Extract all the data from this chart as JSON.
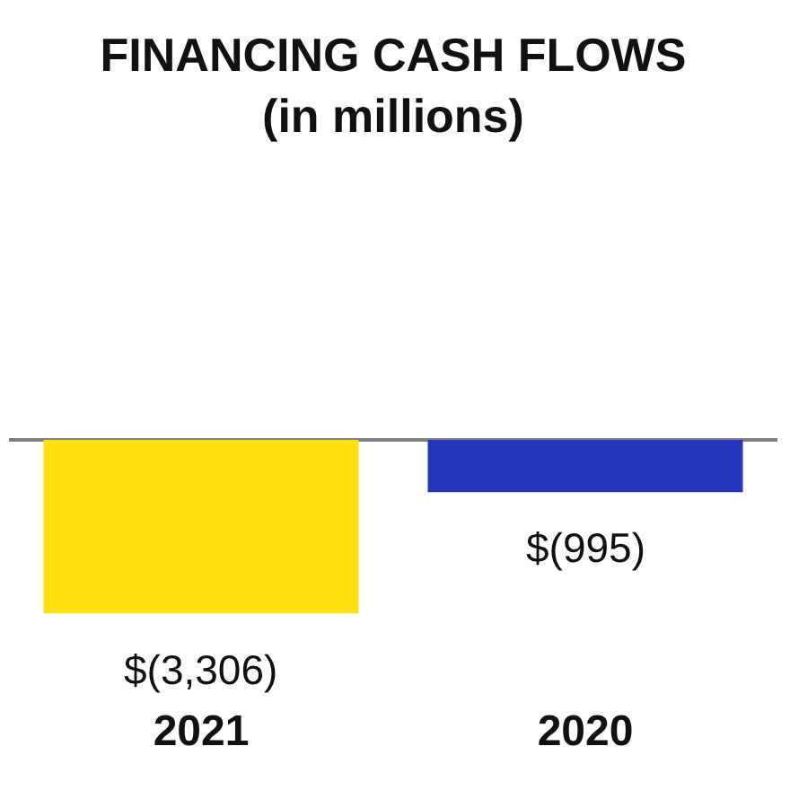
{
  "chart_data": {
    "type": "bar",
    "title": "FINANCING CASH FLOWS\n(in millions)",
    "categories": [
      "2021",
      "2020"
    ],
    "values": [
      -3306,
      -995
    ],
    "colors": [
      "#ffdf10",
      "#2535be"
    ],
    "value_labels": [
      "$(3,306)",
      "$(995)"
    ]
  }
}
